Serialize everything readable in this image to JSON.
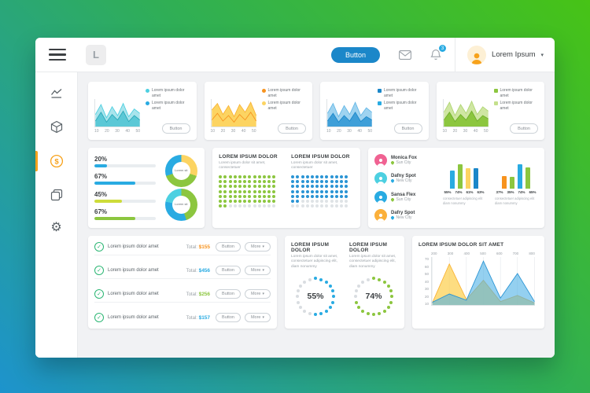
{
  "ui": {
    "caret": "▾",
    "check": "✓"
  },
  "topbar": {
    "logo_letter": "L",
    "primary_button": "Button",
    "notification_count": "3",
    "user_name": "Lorem Ipsum"
  },
  "sidebar": {
    "items": [
      "line-chart-icon",
      "cube-icon",
      "dollar-icon",
      "copy-icon",
      "gear-icon"
    ],
    "active_item": "dollar-icon",
    "active_color": "#f7a21b"
  },
  "mini_charts": [
    {
      "legend": [
        {
          "label": "Lorem ipsum dolor amet",
          "color": "#4dd0e1"
        },
        {
          "label": "Lorem ipsum dolor amet",
          "color": "#29abe2"
        }
      ],
      "x_labels": [
        "10",
        "20",
        "30",
        "40",
        "50"
      ],
      "button": "Button",
      "chart": {
        "max": 50,
        "series": [
          {
            "fill": "#a9e4ec",
            "stroke": "#4dd0e1",
            "values": [
              22,
              40,
              16,
              36,
              20,
              42,
              18,
              32,
              24
            ]
          },
          {
            "fill": "#5bc8d6",
            "stroke": "#2aa8b8",
            "values": [
              10,
              26,
              8,
              22,
              12,
              28,
              9,
              20,
              12
            ]
          }
        ]
      }
    },
    {
      "legend": [
        {
          "label": "Lorem ipsum dolor amet",
          "color": "#f7931e"
        },
        {
          "label": "Lorem ipsum dolor amet",
          "color": "#fcd462"
        }
      ],
      "x_labels": [
        "10",
        "20",
        "30",
        "40",
        "50"
      ],
      "button": "Button",
      "chart": {
        "max": 50,
        "series": [
          {
            "fill": "#fcd462",
            "stroke": "#f9b233",
            "values": [
              30,
              42,
              22,
              38,
              18,
              40,
              26,
              44,
              20
            ]
          },
          {
            "fill": "none",
            "stroke": "#f7931e",
            "values": [
              12,
              24,
              10,
              20,
              8,
              22,
              12,
              26,
              10
            ]
          }
        ]
      }
    },
    {
      "legend": [
        {
          "label": "Lorem ipsum dolor amet",
          "color": "#1b87c9"
        },
        {
          "label": "Lorem ipsum dolor amet",
          "color": "#29abe2"
        }
      ],
      "x_labels": [
        "10",
        "20",
        "30",
        "40",
        "50"
      ],
      "button": "Button",
      "chart": {
        "max": 50,
        "series": [
          {
            "fill": "#9fd3f0",
            "stroke": "#63b7e6",
            "values": [
              24,
              42,
              18,
              38,
              22,
              44,
              20,
              34,
              26
            ]
          },
          {
            "fill": "#3f9fd8",
            "stroke": "#1b87c9",
            "values": [
              10,
              24,
              8,
              20,
              10,
              26,
              9,
              18,
              12
            ]
          }
        ]
      }
    },
    {
      "legend": [
        {
          "label": "Lorem ipsum dolor amet",
          "color": "#8cc63f"
        },
        {
          "label": "Lorem ipsum dolor amet",
          "color": "#c4e08c"
        }
      ],
      "x_labels": [
        "10",
        "20",
        "30",
        "40",
        "50"
      ],
      "button": "Button",
      "chart": {
        "max": 50,
        "series": [
          {
            "fill": "#cfe6a2",
            "stroke": "#aed571",
            "values": [
              26,
              44,
              20,
              40,
              24,
              46,
              22,
              36,
              28
            ]
          },
          {
            "fill": "#8cc63f",
            "stroke": "#6fae2a",
            "values": [
              12,
              26,
              9,
              22,
              12,
              28,
              10,
              20,
              14
            ]
          }
        ]
      }
    }
  ],
  "progress_card": {
    "rows": [
      {
        "percent": "20%",
        "value": 20,
        "color": "#29abe2"
      },
      {
        "percent": "67%",
        "value": 67,
        "color": "#29abe2"
      },
      {
        "percent": "45%",
        "value": 45,
        "color": "#cddc39"
      },
      {
        "percent": "67%",
        "value": 67,
        "color": "#8cc63f"
      }
    ],
    "donuts": [
      {
        "label": "Lorem sit",
        "segments": [
          {
            "color": "#fcd462",
            "value": 30
          },
          {
            "color": "#8cc63f",
            "value": 40
          },
          {
            "color": "#29abe2",
            "value": 30
          }
        ]
      },
      {
        "label": "Lorem sit",
        "segments": [
          {
            "color": "#8cc63f",
            "value": 45
          },
          {
            "color": "#29abe2",
            "value": 33
          },
          {
            "color": "#4dd0e1",
            "value": 22
          }
        ]
      }
    ]
  },
  "waffle_card": {
    "sections": [
      {
        "title": "LOREM IPSUM DOLOR",
        "subtitle": "Lorem ipsum dolor sit amet, consectetuer",
        "color": "#8cc63f",
        "cols": 12,
        "rows": 7,
        "filled": 74,
        "empty_color": "#dfe3e6"
      },
      {
        "title": "LOREM IPSUM DOLOR",
        "subtitle": "Lorem ipsum dolor sit amet, consectetuer",
        "color": "#2a94d4",
        "cols": 12,
        "rows": 7,
        "filled": 62,
        "empty_color": "#dfe3e6"
      }
    ]
  },
  "people_card": {
    "people": [
      {
        "name": "Monica Fox",
        "city": "Sun City",
        "avatar_color": "#f06292",
        "pin_color": "#8cc63f"
      },
      {
        "name": "Dafny Spot",
        "city": "New City",
        "avatar_color": "#4dd0e1",
        "pin_color": "#29abe2"
      },
      {
        "name": "Sansa Flex",
        "city": "Sun City",
        "avatar_color": "#29abe2",
        "pin_color": "#8cc63f"
      },
      {
        "name": "Dafry Spot",
        "city": "New City",
        "avatar_color": "#fbb03b",
        "pin_color": "#29abe2"
      }
    ],
    "groups": [
      {
        "percents": [
          "55%",
          "74%",
          "61%",
          "63%"
        ],
        "values": [
          55,
          74,
          61,
          63
        ],
        "colors": [
          "#29abe2",
          "#8cc63f",
          "#fcd462",
          "#1b87c9"
        ],
        "note": "consectetuer adipiscing elit diam nonummy"
      },
      {
        "percents": [
          "37%",
          "35%",
          "74%",
          "65%"
        ],
        "values": [
          37,
          35,
          74,
          65
        ],
        "colors": [
          "#f7931e",
          "#8cc63f",
          "#29abe2",
          "#8cc63f"
        ],
        "note": "consectetuer adipiscing elit diam nonummy"
      }
    ]
  },
  "orders_card": {
    "check_color": "#2bb673",
    "rows": [
      {
        "label": "Lorem ipsum dolor amet",
        "total_label": "Total:",
        "amount": "$155",
        "amount_color": "#f7931e",
        "button": "Button",
        "more": "More"
      },
      {
        "label": "Lorem ipsum dolor amet",
        "total_label": "Total:",
        "amount": "$456",
        "amount_color": "#29abe2",
        "button": "Button",
        "more": "More"
      },
      {
        "label": "Lorem ipsum dolor amet",
        "total_label": "Total:",
        "amount": "$256",
        "amount_color": "#8cc63f",
        "button": "Button",
        "more": "More"
      },
      {
        "label": "Lorem ipsum dolor amet",
        "total_label": "Total:",
        "amount": "$157",
        "amount_color": "#29abe2",
        "button": "Button",
        "more": "More"
      }
    ]
  },
  "ring_card": {
    "sections": [
      {
        "title": "LOREM IPSUM DOLOR",
        "subtitle": "Lorem ipsum dolor sit amet, consectetuer adipiscing elit, diam nonummy",
        "percent": "55%",
        "value": 55,
        "color": "#29abe2"
      },
      {
        "title": "LOREM IPSUM DOLOR",
        "subtitle": "Lorem ipsum dolor sit amet, consectetuer adipiscing elit, diam nonummy",
        "percent": "74%",
        "value": 74,
        "color": "#8cc63f"
      }
    ]
  },
  "area_chart_card": {
    "title": "LOREM IPSUM DOLOR SIT AMET",
    "x_labels": [
      "200",
      "300",
      "400",
      "500",
      "600",
      "700",
      "800"
    ],
    "y_labels": [
      "70",
      "60",
      "50",
      "40",
      "30",
      "20",
      "10"
    ],
    "chart": {
      "max": 70,
      "grid": 7,
      "series": [
        {
          "fill": "rgba(252,212,98,0.8)",
          "stroke": "#f9b233",
          "values": [
            3,
            60,
            8,
            36,
            5,
            14,
            3
          ]
        },
        {
          "fill": "rgba(77,176,230,0.6)",
          "stroke": "#2a94d4",
          "values": [
            4,
            16,
            7,
            64,
            10,
            46,
            5
          ]
        }
      ]
    }
  }
}
